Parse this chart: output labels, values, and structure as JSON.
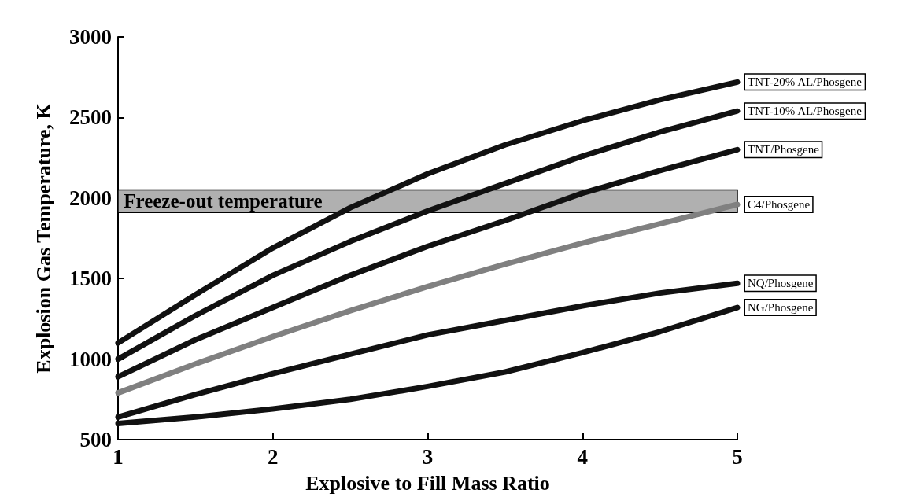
{
  "chart_data": {
    "type": "line",
    "xlabel": "Explosive to Fill Mass Ratio",
    "ylabel": "Explosion Gas Temperature, K",
    "x": [
      1,
      1.5,
      2,
      2.5,
      3,
      3.5,
      4,
      4.5,
      5
    ],
    "series": [
      {
        "name": "TNT-20% AL/Phosgene",
        "color": "#111111",
        "values": [
          1100,
          1400,
          1690,
          1940,
          2150,
          2330,
          2480,
          2610,
          2720
        ]
      },
      {
        "name": "TNT-10% AL/Phosgene",
        "color": "#111111",
        "values": [
          1000,
          1270,
          1520,
          1730,
          1920,
          2090,
          2260,
          2410,
          2540
        ]
      },
      {
        "name": "TNT/Phosgene",
        "color": "#111111",
        "values": [
          890,
          1120,
          1320,
          1520,
          1700,
          1860,
          2030,
          2170,
          2300
        ]
      },
      {
        "name": "C4/Phosgene",
        "color": "#808080",
        "values": [
          790,
          970,
          1140,
          1300,
          1450,
          1590,
          1720,
          1840,
          1960
        ]
      },
      {
        "name": "NQ/Phosgene",
        "color": "#111111",
        "values": [
          640,
          780,
          910,
          1030,
          1150,
          1240,
          1330,
          1410,
          1470
        ]
      },
      {
        "name": "NG/Phosgene",
        "color": "#111111",
        "values": [
          600,
          640,
          690,
          750,
          830,
          920,
          1040,
          1170,
          1320
        ]
      }
    ],
    "xlim": [
      1,
      5
    ],
    "xticks": [
      1,
      2,
      3,
      4,
      5
    ],
    "ylim": [
      500,
      3000
    ],
    "yticks": [
      500,
      1000,
      1500,
      2000,
      2500,
      3000
    ],
    "bands": [
      {
        "axis": "y",
        "from": 1910,
        "to": 2050,
        "label": "Freeze-out temperature",
        "color": "#b0b0b0"
      }
    ],
    "grid": false,
    "legend": false,
    "marker": "none",
    "line_style": "solid"
  }
}
